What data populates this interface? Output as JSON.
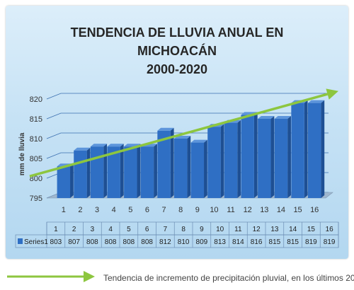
{
  "chart_data": {
    "type": "bar",
    "title_lines": [
      "TENDENCIA DE LLUVIA ANUAL EN",
      "MICHOACÁN",
      "2000-2020"
    ],
    "ylabel": "mm de lluvia",
    "ylim": [
      795,
      820
    ],
    "yticks": [
      "795",
      "800",
      "805",
      "810",
      "815",
      "820"
    ],
    "categories": [
      "1",
      "2",
      "3",
      "4",
      "5",
      "6",
      "7",
      "8",
      "9",
      "10",
      "11",
      "12",
      "13",
      "14",
      "15",
      "16"
    ],
    "series": [
      {
        "name": "Series1",
        "values": [
          803,
          807,
          808,
          808,
          808,
          808,
          812,
          810,
          809,
          813,
          814,
          816,
          815,
          815,
          819,
          819
        ]
      }
    ],
    "trendline": {
      "start": 800.5,
      "end": 822
    },
    "colors": {
      "bar": "#2f6fc4",
      "bar_dark": "#1e4f93",
      "trend": "#8dc63f",
      "grid": "#3a6fb0"
    }
  },
  "footer": {
    "caption": "Tendencia de incremento de precipitación pluvial, en los últimos 20"
  }
}
